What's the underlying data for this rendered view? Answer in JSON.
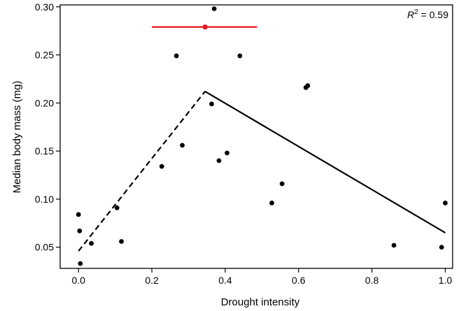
{
  "chart_data": {
    "type": "scatter",
    "xlabel": "Drought intensity",
    "ylabel": "Median body mass (mg)",
    "xlim": [
      -0.05,
      1.02
    ],
    "ylim": [
      0.028,
      0.302
    ],
    "xticks": [
      0.0,
      0.2,
      0.4,
      0.6,
      0.8,
      1.0
    ],
    "xtick_labels": [
      "0.0",
      "0.2",
      "0.4",
      "0.6",
      "0.8",
      "1.0"
    ],
    "yticks": [
      0.05,
      0.1,
      0.15,
      0.2,
      0.25,
      0.3
    ],
    "ytick_labels": [
      "0.05",
      "0.10",
      "0.15",
      "0.20",
      "0.25",
      "0.30"
    ],
    "annotation": {
      "r_label": "R",
      "sup": "2",
      "value": " = 0.59"
    },
    "points": [
      [
        0.0,
        0.084
      ],
      [
        0.003,
        0.067
      ],
      [
        0.005,
        0.033
      ],
      [
        0.035,
        0.054
      ],
      [
        0.105,
        0.091
      ],
      [
        0.117,
        0.056
      ],
      [
        0.227,
        0.134
      ],
      [
        0.267,
        0.249
      ],
      [
        0.283,
        0.156
      ],
      [
        0.363,
        0.199
      ],
      [
        0.37,
        0.298
      ],
      [
        0.383,
        0.14
      ],
      [
        0.405,
        0.148
      ],
      [
        0.44,
        0.249
      ],
      [
        0.527,
        0.096
      ],
      [
        0.555,
        0.116
      ],
      [
        0.62,
        0.216
      ],
      [
        0.625,
        0.218
      ],
      [
        0.86,
        0.052
      ],
      [
        0.99,
        0.05
      ],
      [
        1.0,
        0.096
      ]
    ],
    "breakpoint": {
      "x": 0.345,
      "y": 0.279,
      "ci": [
        0.2,
        0.487
      ],
      "color": "#e8141b"
    },
    "fit_left": {
      "x": [
        0.0,
        0.345
      ],
      "y": [
        0.046,
        0.212
      ],
      "style": "dashed"
    },
    "fit_right": {
      "x": [
        0.345,
        1.0
      ],
      "y": [
        0.212,
        0.065
      ],
      "style": "solid"
    }
  }
}
